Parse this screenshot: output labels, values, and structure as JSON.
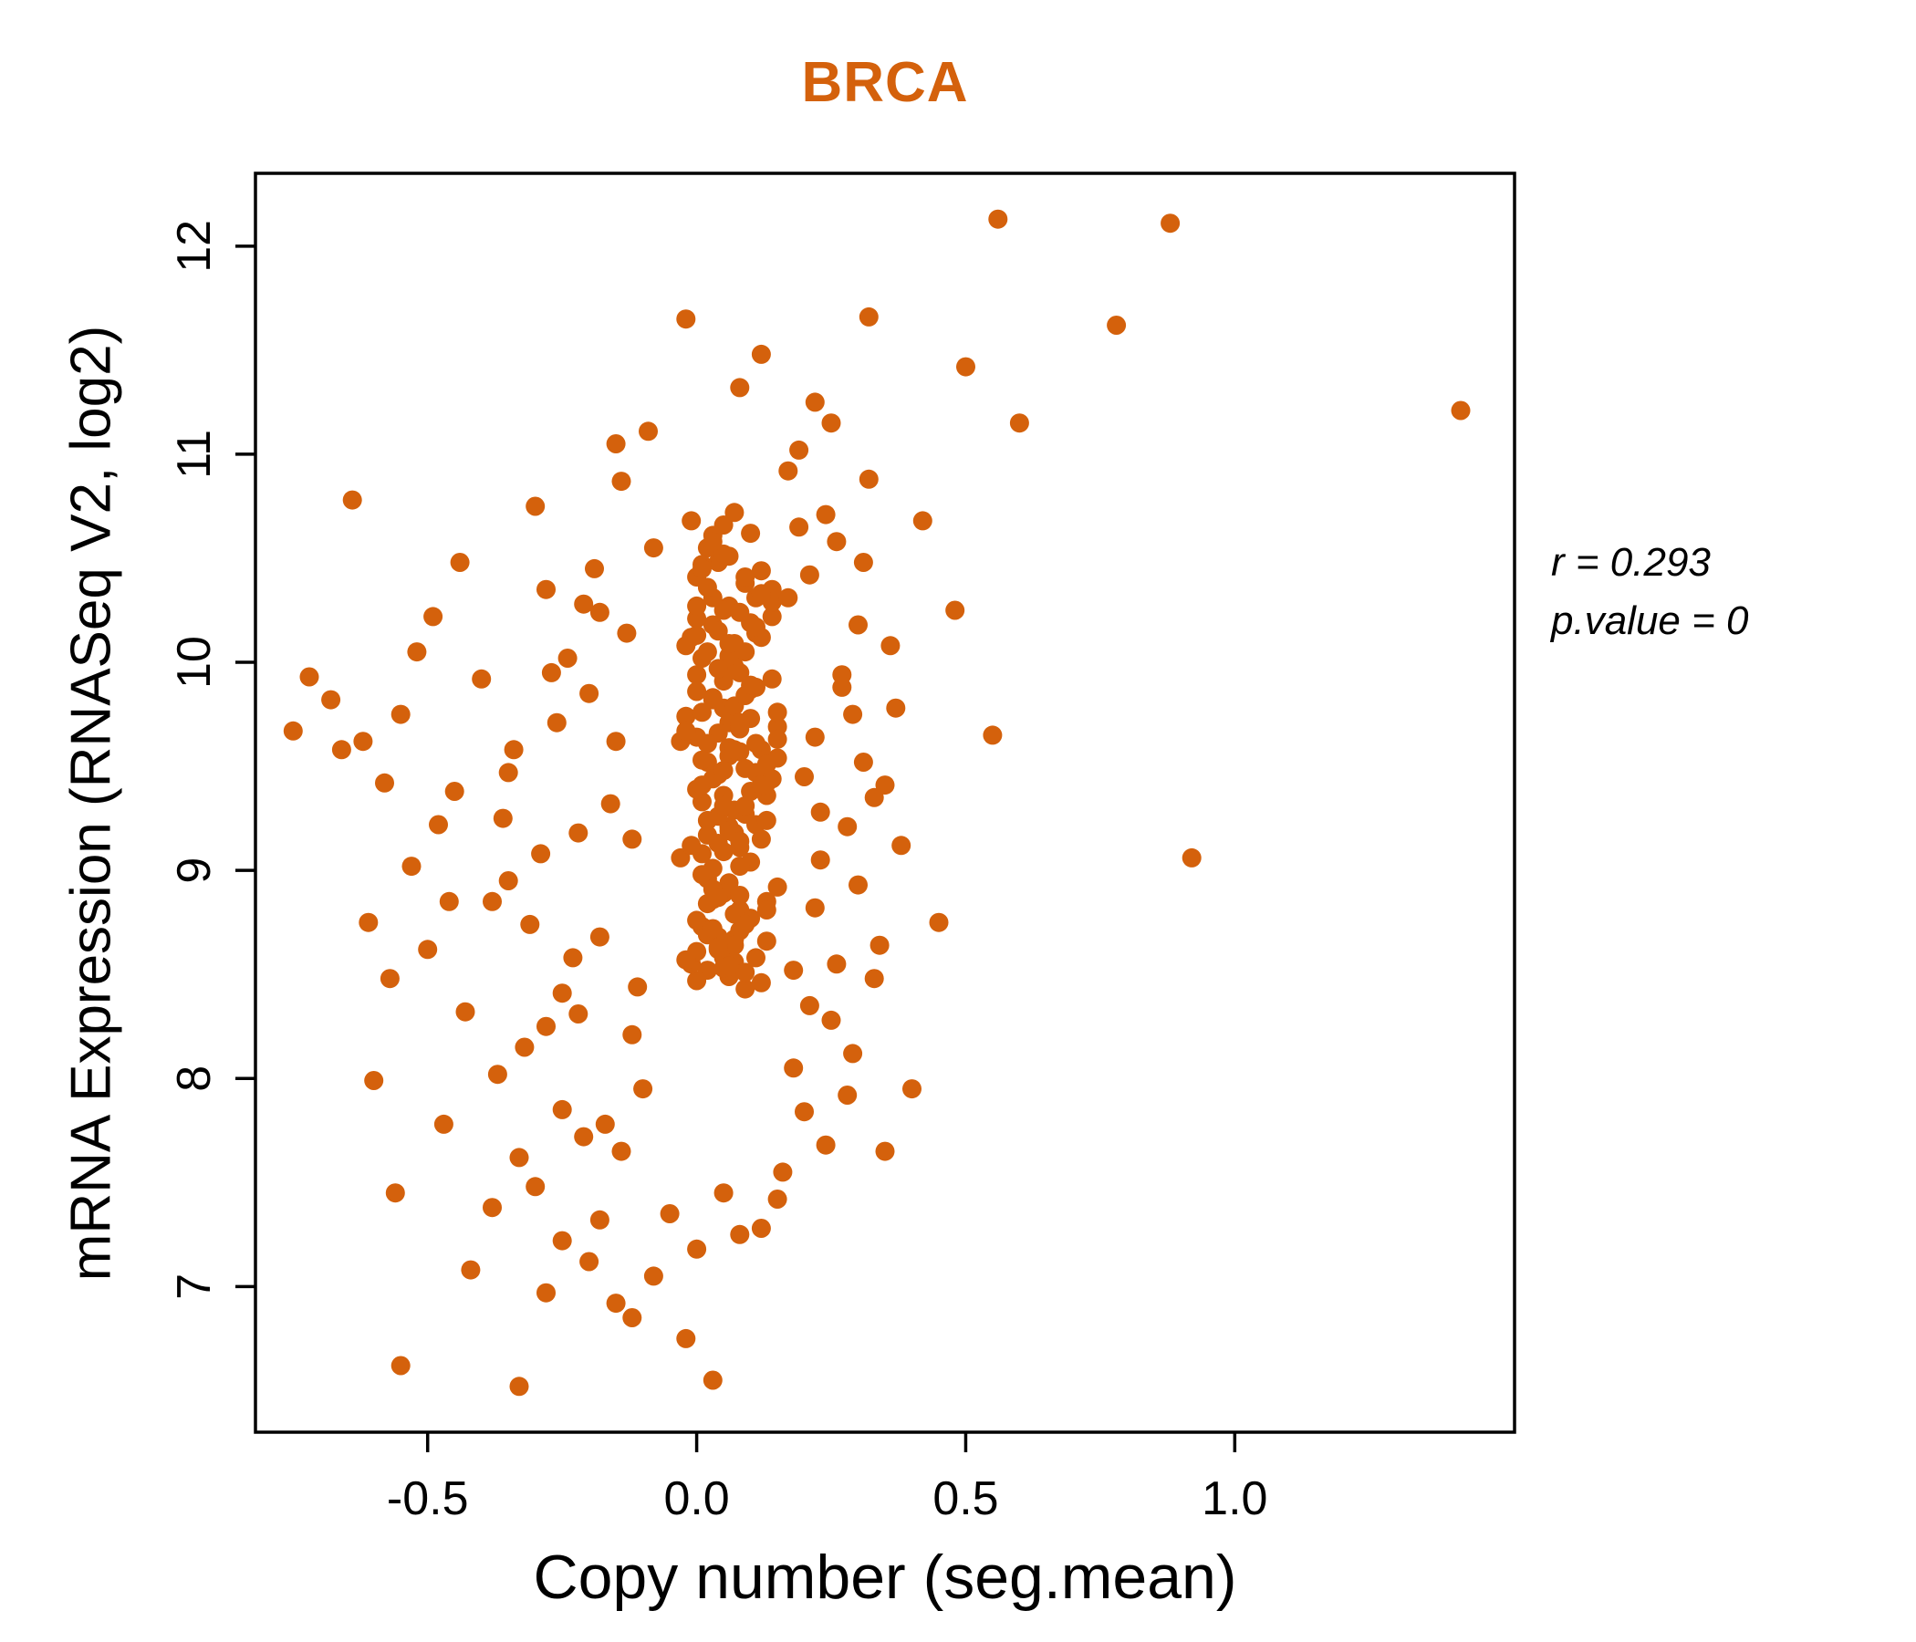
{
  "title": "BRCA",
  "axis": {
    "x_label": "Copy number (seg.mean)",
    "y_label": "mRNA Expression (RNASeq V2, log2)"
  },
  "annotation": {
    "line1": "r = 0.293",
    "line2": "p.value = 0"
  },
  "colors": {
    "accent": "#D4610C",
    "point": "#D4610C",
    "axis_line": "#000000"
  },
  "chart_data": {
    "type": "scatter",
    "title": "BRCA",
    "xlabel": "Copy number (seg.mean)",
    "ylabel": "mRNA Expression (RNASeq V2, log2)",
    "xlim": [
      -0.82,
      1.52
    ],
    "ylim": [
      6.3,
      12.35
    ],
    "x_ticks": [
      -0.5,
      0.0,
      0.5,
      1.0
    ],
    "x_tick_labels": [
      "-0.5",
      "0.0",
      "0.5",
      "1.0"
    ],
    "y_ticks": [
      7,
      8,
      9,
      10,
      11,
      12
    ],
    "y_tick_labels": [
      "7",
      "8",
      "9",
      "10",
      "11",
      "12"
    ],
    "grid": false,
    "legend": "none",
    "point_color": "#D4610C",
    "annotations": [
      "r = 0.293",
      "p.value = 0"
    ],
    "points": [
      [
        0.02,
        9.52
      ],
      [
        0.05,
        9.78
      ],
      [
        -0.01,
        10.12
      ],
      [
        0.08,
        9.95
      ],
      [
        0.11,
        10.31
      ],
      [
        0.03,
        8.86
      ],
      [
        0.06,
        9.21
      ],
      [
        0.0,
        9.64
      ],
      [
        0.09,
        10.05
      ],
      [
        0.13,
        9.42
      ],
      [
        0.04,
        10.48
      ],
      [
        0.07,
        8.67
      ],
      [
        0.01,
        9.33
      ],
      [
        0.1,
        9.87
      ],
      [
        0.14,
        10.22
      ],
      [
        0.02,
        8.52
      ],
      [
        0.05,
        10.66
      ],
      [
        0.08,
        9.11
      ],
      [
        -0.02,
        9.74
      ],
      [
        0.12,
        9.58
      ],
      [
        0.03,
        10.18
      ],
      [
        0.06,
        8.94
      ],
      [
        0.0,
        10.41
      ],
      [
        0.09,
        9.27
      ],
      [
        0.15,
        9.69
      ],
      [
        0.01,
        8.73
      ],
      [
        0.04,
        9.46
      ],
      [
        0.07,
        10.09
      ],
      [
        0.11,
        8.58
      ],
      [
        0.05,
        9.91
      ],
      [
        0.02,
        10.55
      ],
      [
        0.08,
        8.81
      ],
      [
        0.13,
        9.36
      ],
      [
        -0.03,
        9.62
      ],
      [
        0.06,
        10.27
      ],
      [
        0.1,
        9.04
      ],
      [
        0.0,
        8.47
      ],
      [
        0.03,
        9.83
      ],
      [
        0.07,
        10.72
      ],
      [
        0.12,
        9.15
      ],
      [
        0.04,
        8.62
      ],
      [
        0.01,
        10.02
      ],
      [
        0.09,
        9.49
      ],
      [
        0.05,
        8.89
      ],
      [
        0.14,
        10.35
      ],
      [
        0.02,
        9.24
      ],
      [
        0.06,
        9.71
      ],
      [
        0.11,
        10.14
      ],
      [
        -0.01,
        8.55
      ],
      [
        0.08,
        9.57
      ],
      [
        0.03,
        10.61
      ],
      [
        0.1,
        8.77
      ],
      [
        0.0,
        9.39
      ],
      [
        0.07,
        9.98
      ],
      [
        0.13,
        8.66
      ],
      [
        0.05,
        10.25
      ],
      [
        0.01,
        9.08
      ],
      [
        0.09,
        8.43
      ],
      [
        0.04,
        9.66
      ],
      [
        0.12,
        10.44
      ],
      [
        0.06,
        9.19
      ],
      [
        0.02,
        8.96
      ],
      [
        0.15,
        9.54
      ],
      [
        -0.02,
        10.08
      ],
      [
        0.08,
        8.71
      ],
      [
        0.03,
        9.44
      ],
      [
        0.11,
        9.88
      ],
      [
        0.05,
        10.52
      ],
      [
        0.0,
        8.61
      ],
      [
        0.07,
        9.29
      ],
      [
        0.1,
        10.19
      ],
      [
        0.01,
        9.76
      ],
      [
        0.13,
        8.85
      ],
      [
        0.04,
        9.13
      ],
      [
        0.09,
        10.38
      ],
      [
        0.06,
        8.49
      ],
      [
        0.02,
        9.61
      ],
      [
        0.14,
        9.92
      ],
      [
        -0.01,
        10.68
      ],
      [
        0.08,
        9.02
      ],
      [
        0.05,
        8.58
      ],
      [
        0.11,
        9.47
      ],
      [
        0.03,
        10.31
      ],
      [
        0.07,
        8.79
      ],
      [
        0.0,
        9.94
      ],
      [
        0.12,
        10.12
      ],
      [
        0.04,
        8.68
      ],
      [
        0.09,
        9.31
      ],
      [
        0.01,
        10.47
      ],
      [
        0.06,
        9.59
      ],
      [
        0.15,
        8.92
      ],
      [
        0.02,
        9.17
      ],
      [
        0.08,
        10.24
      ],
      [
        0.05,
        8.53
      ],
      [
        0.1,
        9.73
      ],
      [
        -0.03,
        9.06
      ],
      [
        0.03,
        10.58
      ],
      [
        0.07,
        8.64
      ],
      [
        0.13,
        9.51
      ],
      [
        0.0,
        9.86
      ],
      [
        0.04,
        10.15
      ],
      [
        0.09,
        8.74
      ],
      [
        0.01,
        9.41
      ],
      [
        0.06,
        10.03
      ],
      [
        0.11,
        9.22
      ],
      [
        0.02,
        8.84
      ],
      [
        0.08,
        9.68
      ],
      [
        0.14,
        10.29
      ],
      [
        -0.02,
        8.57
      ],
      [
        0.05,
        9.36
      ],
      [
        0.1,
        10.62
      ],
      [
        0.03,
        9.01
      ],
      [
        0.07,
        9.79
      ],
      [
        0.12,
        8.46
      ],
      [
        0.0,
        10.21
      ],
      [
        0.06,
        9.55
      ],
      [
        0.01,
        8.98
      ],
      [
        0.09,
        10.41
      ],
      [
        0.04,
        9.26
      ],
      [
        0.15,
        9.63
      ],
      [
        0.02,
        10.05
      ],
      [
        0.08,
        8.88
      ],
      [
        0.05,
        9.48
      ],
      [
        0.11,
        10.17
      ],
      [
        -0.01,
        9.12
      ],
      [
        0.07,
        8.56
      ],
      [
        0.03,
        9.82
      ],
      [
        0.1,
        9.38
      ],
      [
        0.06,
        10.51
      ],
      [
        0.0,
        8.76
      ],
      [
        0.13,
        9.24
      ],
      [
        0.04,
        9.97
      ],
      [
        0.09,
        8.51
      ],
      [
        0.01,
        9.53
      ],
      [
        0.12,
        10.33
      ],
      [
        0.05,
        9.09
      ],
      [
        0.08,
        9.71
      ],
      [
        0.02,
        8.69
      ],
      [
        0.14,
        9.44
      ],
      [
        0.06,
        10.09
      ],
      [
        0.03,
        8.91
      ],
      [
        0.11,
        9.61
      ],
      [
        0.0,
        10.27
      ],
      [
        0.07,
        9.18
      ],
      [
        0.04,
        8.63
      ],
      [
        0.09,
        9.84
      ],
      [
        0.01,
        10.45
      ],
      [
        0.13,
        8.81
      ],
      [
        0.05,
        9.31
      ],
      [
        0.1,
        9.89
      ],
      [
        -0.02,
        9.67
      ],
      [
        0.06,
        8.54
      ],
      [
        0.02,
        10.36
      ],
      [
        0.08,
        9.14
      ],
      [
        0.15,
        9.76
      ],
      [
        0.03,
        8.72
      ],
      [
        0.12,
        9.41
      ],
      [
        0.0,
        10.13
      ],
      [
        0.07,
        9.58
      ],
      [
        0.04,
        8.87
      ],
      [
        -0.15,
        9.62
      ],
      [
        -0.22,
        9.18
      ],
      [
        0.21,
        10.42
      ],
      [
        -0.31,
        8.74
      ],
      [
        0.27,
        9.88
      ],
      [
        -0.08,
        10.55
      ],
      [
        0.33,
        9.35
      ],
      [
        -0.27,
        9.95
      ],
      [
        0.18,
        8.52
      ],
      [
        -0.12,
        8.21
      ],
      [
        0.24,
        10.71
      ],
      [
        -0.35,
        9.47
      ],
      [
        0.3,
        8.93
      ],
      [
        -0.18,
        10.24
      ],
      [
        0.22,
        9.64
      ],
      [
        -0.25,
        8.41
      ],
      [
        0.36,
        10.08
      ],
      [
        -0.1,
        7.95
      ],
      [
        0.19,
        11.02
      ],
      [
        -0.29,
        9.08
      ],
      [
        0.25,
        8.28
      ],
      [
        -0.14,
        10.87
      ],
      [
        0.31,
        9.52
      ],
      [
        -0.21,
        7.72
      ],
      [
        0.17,
        10.31
      ],
      [
        -0.38,
        8.85
      ],
      [
        0.28,
        9.21
      ],
      [
        -0.09,
        11.11
      ],
      [
        0.34,
        8.64
      ],
      [
        -0.24,
        10.02
      ],
      [
        0.2,
        7.84
      ],
      [
        -0.16,
        9.32
      ],
      [
        0.26,
        10.58
      ],
      [
        -0.33,
        7.62
      ],
      [
        0.23,
        9.05
      ],
      [
        -0.11,
        8.44
      ],
      [
        0.37,
        9.78
      ],
      [
        -0.19,
        10.45
      ],
      [
        0.29,
        8.12
      ],
      [
        -0.26,
        9.71
      ],
      [
        0.16,
        7.55
      ],
      [
        -0.13,
        10.14
      ],
      [
        0.32,
        10.88
      ],
      [
        -0.36,
        9.25
      ],
      [
        0.21,
        8.35
      ],
      [
        -0.17,
        7.78
      ],
      [
        0.27,
        9.94
      ],
      [
        -0.23,
        8.58
      ],
      [
        0.35,
        9.41
      ],
      [
        -0.28,
        10.35
      ],
      [
        0.18,
        8.05
      ],
      [
        -0.2,
        9.85
      ],
      [
        0.24,
        7.68
      ],
      [
        -0.32,
        8.15
      ],
      [
        0.3,
        10.18
      ],
      [
        -0.15,
        11.05
      ],
      [
        0.22,
        8.82
      ],
      [
        -0.34,
        9.58
      ],
      [
        0.19,
        10.65
      ],
      [
        -0.22,
        8.31
      ],
      [
        0.28,
        7.92
      ],
      [
        -0.3,
        10.75
      ],
      [
        0.33,
        8.48
      ],
      [
        -0.12,
        9.15
      ],
      [
        0.25,
        11.15
      ],
      [
        -0.37,
        8.02
      ],
      [
        0.2,
        9.45
      ],
      [
        -0.25,
        7.85
      ],
      [
        0.31,
        10.48
      ],
      [
        -0.18,
        8.68
      ],
      [
        0.23,
        9.28
      ],
      [
        -0.4,
        9.92
      ],
      [
        0.17,
        10.92
      ],
      [
        -0.28,
        8.25
      ],
      [
        0.26,
        8.55
      ],
      [
        -0.14,
        7.65
      ],
      [
        0.38,
        9.12
      ],
      [
        -0.21,
        10.28
      ],
      [
        0.29,
        9.75
      ],
      [
        -0.35,
        8.95
      ],
      [
        -0.75,
        9.67
      ],
      [
        -0.72,
        9.93
      ],
      [
        -0.64,
        10.78
      ],
      [
        -0.62,
        9.62
      ],
      [
        -0.6,
        7.99
      ],
      [
        -0.58,
        9.42
      ],
      [
        -0.55,
        9.75
      ],
      [
        -0.52,
        10.05
      ],
      [
        -0.5,
        8.62
      ],
      [
        -0.48,
        9.22
      ],
      [
        -0.46,
        8.85
      ],
      [
        -0.44,
        10.48
      ],
      [
        -0.57,
        8.48
      ],
      [
        -0.66,
        9.58
      ],
      [
        -0.47,
        7.78
      ],
      [
        -0.53,
        9.02
      ],
      [
        -0.61,
        8.75
      ],
      [
        -0.45,
        9.38
      ],
      [
        -0.49,
        10.22
      ],
      [
        -0.56,
        7.45
      ],
      [
        -0.43,
        8.32
      ],
      [
        -0.68,
        9.82
      ],
      [
        -0.55,
        6.62
      ],
      [
        -0.33,
        6.52
      ],
      [
        0.03,
        6.55
      ],
      [
        -0.28,
        6.97
      ],
      [
        -0.12,
        6.85
      ],
      [
        0.08,
        7.25
      ],
      [
        -0.2,
        7.12
      ],
      [
        -0.05,
        7.35
      ],
      [
        0.12,
        7.28
      ],
      [
        -0.38,
        7.38
      ],
      [
        -0.15,
        6.92
      ],
      [
        0.05,
        7.45
      ],
      [
        -0.25,
        7.22
      ],
      [
        -0.08,
        7.05
      ],
      [
        0.15,
        7.42
      ],
      [
        -0.3,
        7.48
      ],
      [
        -0.02,
        6.75
      ],
      [
        -0.18,
        7.32
      ],
      [
        0.0,
        7.18
      ],
      [
        -0.42,
        7.08
      ],
      [
        0.56,
        12.13
      ],
      [
        0.88,
        12.11
      ],
      [
        0.78,
        11.62
      ],
      [
        1.42,
        11.21
      ],
      [
        0.92,
        9.06
      ],
      [
        0.6,
        11.15
      ],
      [
        0.5,
        11.42
      ],
      [
        0.32,
        11.66
      ],
      [
        -0.02,
        11.65
      ],
      [
        0.12,
        11.48
      ],
      [
        0.08,
        11.32
      ],
      [
        0.22,
        11.25
      ],
      [
        0.42,
        10.68
      ],
      [
        0.48,
        10.25
      ],
      [
        0.55,
        9.65
      ],
      [
        0.45,
        8.75
      ],
      [
        0.4,
        7.95
      ],
      [
        0.35,
        7.65
      ]
    ]
  }
}
